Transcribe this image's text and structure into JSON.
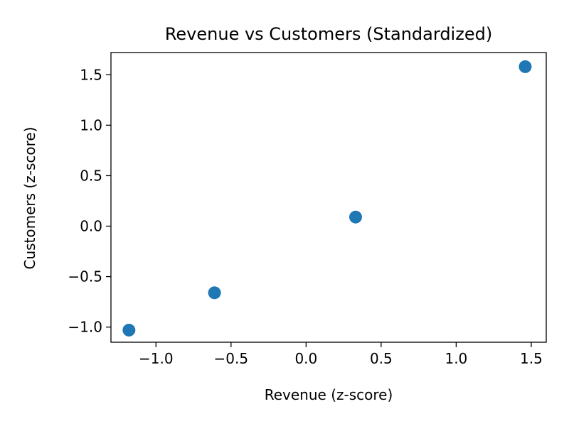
{
  "chart_data": {
    "type": "scatter",
    "title": "Revenue vs Customers (Standardized)",
    "xlabel": "Revenue (z-score)",
    "ylabel": "Customers (z-score)",
    "xlim": [
      -1.3,
      1.6
    ],
    "ylim": [
      -1.15,
      1.72
    ],
    "xticks": [
      -1.0,
      -0.5,
      0.0,
      0.5,
      1.0,
      1.5
    ],
    "xtick_labels": [
      "−1.0",
      "−0.5",
      "0.0",
      "0.5",
      "1.0",
      "1.5"
    ],
    "yticks": [
      -1.0,
      -0.5,
      0.0,
      0.5,
      1.0,
      1.5
    ],
    "ytick_labels": [
      "−1.0",
      "−0.5",
      "0.0",
      "0.5",
      "1.0",
      "1.5"
    ],
    "grid": false,
    "color": "#1f77b4",
    "points": [
      {
        "x": -1.18,
        "y": -1.03
      },
      {
        "x": -0.61,
        "y": -0.66
      },
      {
        "x": 0.33,
        "y": 0.09
      },
      {
        "x": 1.46,
        "y": 1.58
      }
    ]
  }
}
